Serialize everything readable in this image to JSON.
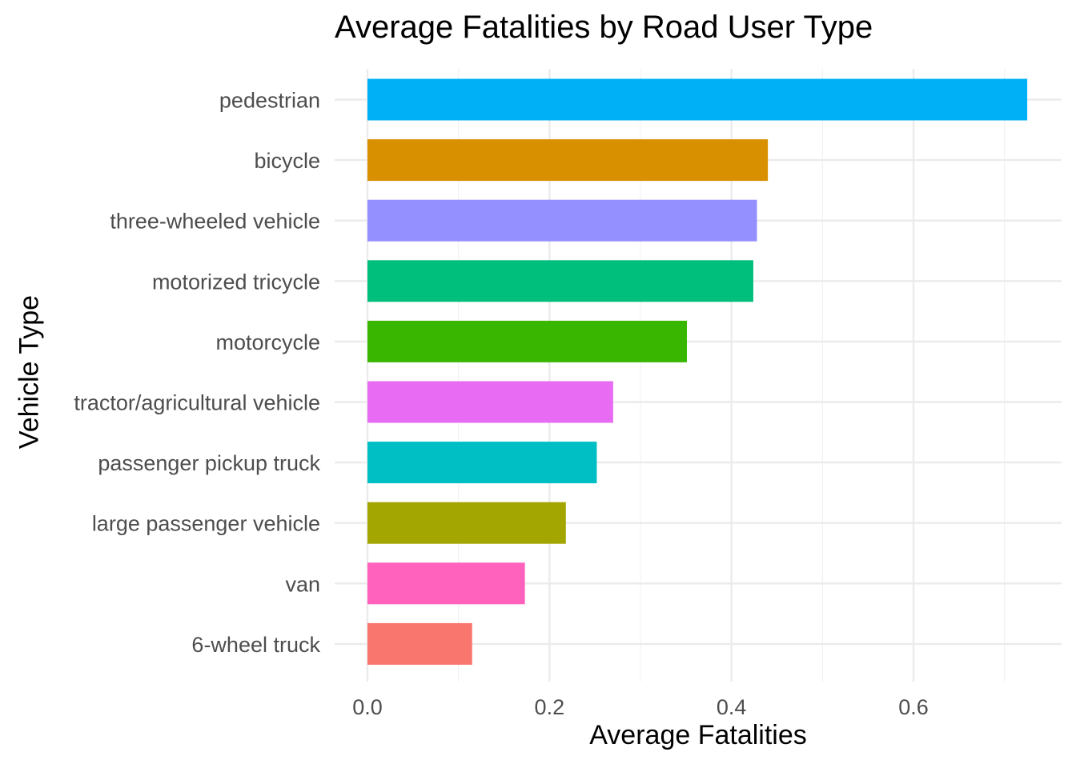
{
  "chart_data": {
    "type": "bar",
    "orientation": "horizontal",
    "title": "Average Fatalities by Road User Type",
    "xlabel": "Average Fatalities",
    "ylabel": "Vehicle Type",
    "xlim": [
      0,
      0.76
    ],
    "x_ticks": [
      "0.0",
      "0.2",
      "0.4",
      "0.6"
    ],
    "x_tick_values": [
      0,
      0.2,
      0.4,
      0.6
    ],
    "grid": true,
    "legend": "none",
    "categories": [
      "pedestrian",
      "bicycle",
      "three-wheeled vehicle",
      "motorized tricycle",
      "motorcycle",
      "tractor/agricultural vehicle",
      "passenger pickup truck",
      "large passenger vehicle",
      "van",
      "6-wheel truck"
    ],
    "values": [
      0.725,
      0.44,
      0.428,
      0.424,
      0.351,
      0.27,
      0.252,
      0.218,
      0.173,
      0.115
    ],
    "colors": [
      "#00B0F6",
      "#D89000",
      "#9590FF",
      "#00BF7D",
      "#39B600",
      "#E76BF3",
      "#00BFC4",
      "#A3A500",
      "#FF62BC",
      "#F8766D"
    ]
  }
}
